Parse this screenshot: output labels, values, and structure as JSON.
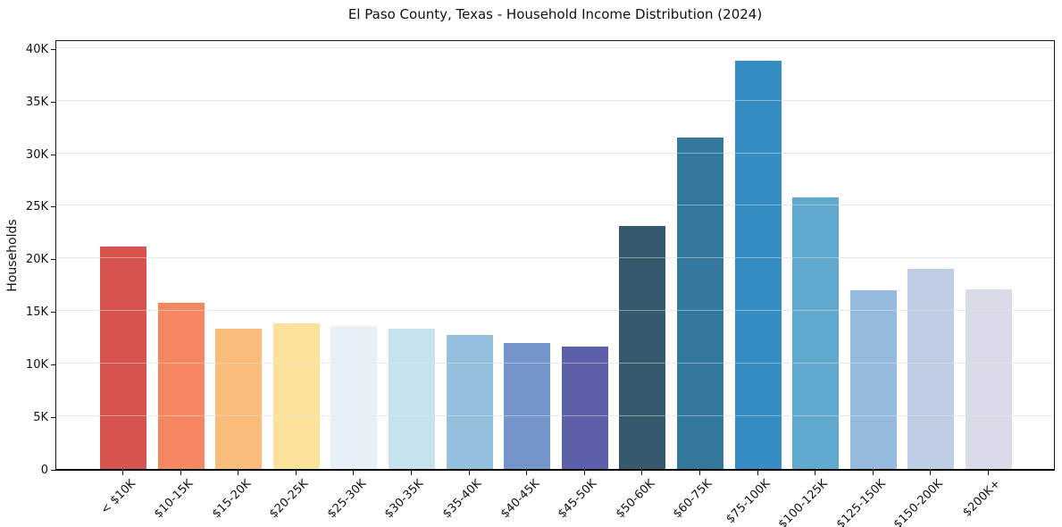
{
  "chart_data": {
    "type": "bar",
    "title": "El Paso County, Texas - Household Income Distribution (2024)",
    "xlabel": "",
    "ylabel": "Households",
    "categories": [
      "< $10K",
      "$10-15K",
      "$15-20K",
      "$20-25K",
      "$25-30K",
      "$30-35K",
      "$35-40K",
      "$40-45K",
      "$45-50K",
      "$50-60K",
      "$60-75K",
      "$75-100K",
      "$100-125K",
      "$125-150K",
      "$150-200K",
      "$200K+"
    ],
    "values": [
      21100,
      15800,
      13300,
      13800,
      13600,
      13300,
      12700,
      12000,
      11600,
      23100,
      31500,
      38800,
      25800,
      17000,
      19000,
      17100
    ],
    "bar_colors": [
      "#d6544d",
      "#f58763",
      "#fabc7b",
      "#fde29b",
      "#e6f0f6",
      "#c7e2ef",
      "#94c0dd",
      "#7495ca",
      "#5c60aa",
      "#36596e",
      "#34789e",
      "#358dc3",
      "#5fa8ce",
      "#94badd",
      "#bfcee4",
      "#d9dbe9"
    ],
    "yticks": {
      "values": [
        0,
        5000,
        10000,
        15000,
        20000,
        25000,
        30000,
        35000,
        40000
      ],
      "labels": [
        "0",
        "5K",
        "10K",
        "15K",
        "20K",
        "25K",
        "30K",
        "35K",
        "40K"
      ]
    },
    "ylim": [
      0,
      40900
    ],
    "grid": "horizontal",
    "grid_color": "#e7e7e7",
    "axis_color": "#1a1a1a",
    "text_color": "#111111",
    "background_color": "#ffffff",
    "legend": "none"
  }
}
